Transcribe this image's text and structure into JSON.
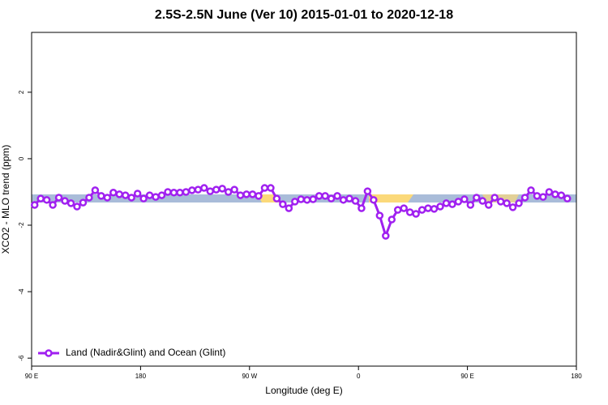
{
  "chart_data": {
    "type": "line",
    "title": "2.5S-2.5N June (Ver 10)   2015-01-01 to 2020-12-18",
    "x_label": "Longitude (deg E)",
    "y_label": "XCO2 - MLO trend (ppm)",
    "xlim": [
      90,
      540
    ],
    "xticks": [
      {
        "value": 90,
        "label": "90 E"
      },
      {
        "value": 180,
        "label": "180"
      },
      {
        "value": 270,
        "label": "90 W"
      },
      {
        "value": 360,
        "label": "0"
      },
      {
        "value": 450,
        "label": "90 E"
      },
      {
        "value": 540,
        "label": "180"
      }
    ],
    "ylim": [
      -6.24,
      3.8
    ],
    "yticks": [
      -6,
      -4,
      -2,
      0,
      2
    ],
    "grid": false,
    "legend": "bottomleft",
    "x": [
      92.5,
      97.5,
      102.5,
      107.5,
      112.5,
      117.5,
      122.5,
      127.5,
      132.5,
      137.5,
      142.5,
      147.5,
      152.5,
      157.5,
      162.5,
      167.5,
      172.5,
      177.5,
      182.5,
      187.5,
      192.5,
      197.5,
      202.5,
      207.5,
      212.5,
      217.5,
      222.5,
      227.5,
      232.5,
      237.5,
      242.5,
      247.5,
      252.5,
      257.5,
      262.5,
      267.5,
      272.5,
      277.5,
      282.5,
      287.5,
      292.5,
      297.5,
      302.5,
      307.5,
      312.5,
      317.5,
      322.5,
      327.5,
      332.5,
      337.5,
      342.5,
      347.5,
      352.5,
      357.5,
      362.5,
      367.5,
      372.5,
      377.5,
      382.5,
      387.5,
      392.5,
      397.5,
      402.5,
      407.5,
      412.5,
      417.5,
      422.5,
      427.5,
      432.5,
      437.5,
      442.5,
      447.5,
      452.5,
      457.5,
      462.5,
      467.5,
      472.5,
      477.5,
      482.5,
      487.5,
      492.5,
      497.5,
      502.5,
      507.5,
      512.5,
      517.5,
      522.5,
      527.5,
      532.5
    ],
    "series": [
      {
        "name": "Land (Nadir&Glint) and Ocean (Glint)",
        "color": "#a020f0",
        "values": [
          -1.39,
          -1.2,
          -1.24,
          -1.39,
          -1.17,
          -1.27,
          -1.34,
          -1.44,
          -1.32,
          -1.17,
          -0.95,
          -1.12,
          -1.17,
          -1.02,
          -1.07,
          -1.1,
          -1.17,
          -1.05,
          -1.2,
          -1.1,
          -1.15,
          -1.1,
          -1.0,
          -1.02,
          -1.02,
          -1.0,
          -0.95,
          -0.93,
          -0.88,
          -0.98,
          -0.93,
          -0.9,
          -1.0,
          -0.93,
          -1.1,
          -1.07,
          -1.07,
          -1.12,
          -0.88,
          -0.88,
          -1.2,
          -1.37,
          -1.49,
          -1.29,
          -1.22,
          -1.24,
          -1.22,
          -1.12,
          -1.12,
          -1.2,
          -1.12,
          -1.24,
          -1.2,
          -1.27,
          -1.49,
          -0.98,
          -1.24,
          -1.71,
          -2.32,
          -1.83,
          -1.54,
          -1.49,
          -1.61,
          -1.66,
          -1.54,
          -1.49,
          -1.51,
          -1.44,
          -1.34,
          -1.37,
          -1.29,
          -1.22,
          -1.39,
          -1.17,
          -1.27,
          -1.39,
          -1.17,
          -1.29,
          -1.34,
          -1.46,
          -1.34,
          -1.17,
          -0.95,
          -1.12,
          -1.15,
          -1.0,
          -1.07,
          -1.1,
          -1.2
        ]
      }
    ]
  }
}
